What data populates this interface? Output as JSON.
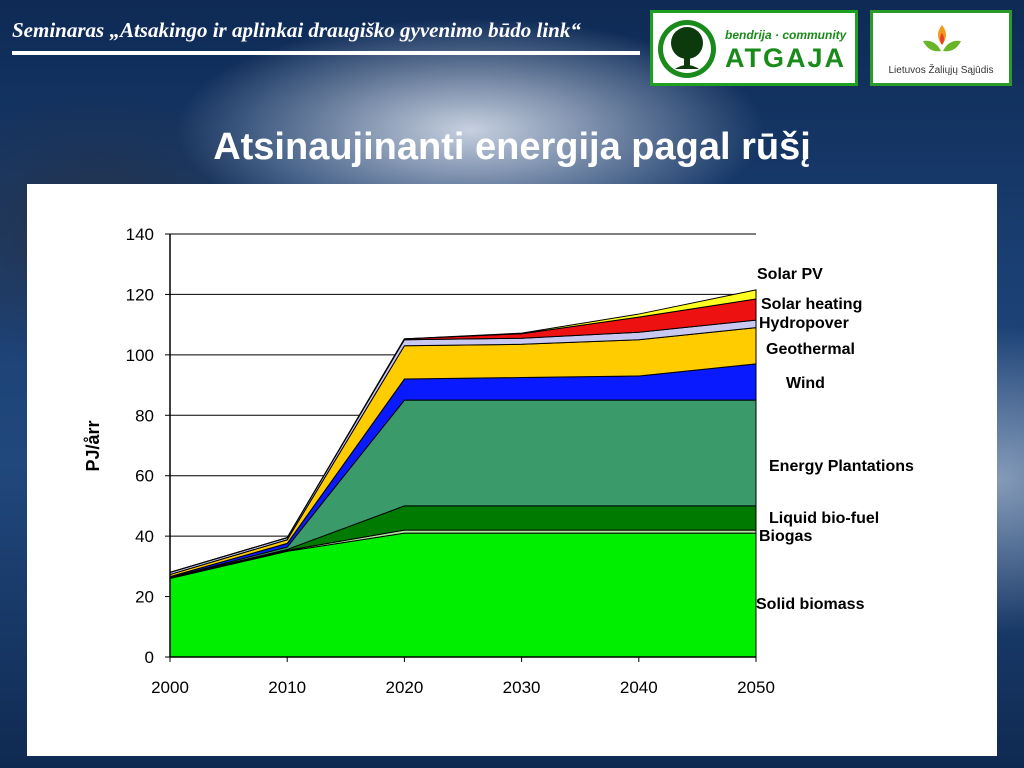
{
  "header": {
    "seminar_title": "Seminaras „Atsakingo ir aplinkai draugiško gyvenimo būdo link“",
    "logo_atgaja": {
      "sub": "bendrija · community",
      "name": "ATGAJA",
      "icon": "tree-icon"
    },
    "logo_lzs": {
      "name": "Lietuvos Žaliųjų Sąjūdis",
      "icon": "flame-leaf-icon"
    }
  },
  "slide": {
    "title": "Atsinaujinanti energija pagal rūšį"
  },
  "chart_data": {
    "type": "area",
    "stacked": true,
    "x": [
      2000,
      2010,
      2020,
      2030,
      2040,
      2050
    ],
    "xlim": [
      2000,
      2050
    ],
    "ylim": [
      0,
      140
    ],
    "yticks": [
      0,
      20,
      40,
      60,
      80,
      100,
      120,
      140
    ],
    "ylabel": "PJ/årr",
    "xlabel": "",
    "grid": true,
    "series": [
      {
        "name": "Solid biomass",
        "color": "#00ee00",
        "values": [
          26,
          35,
          41,
          41,
          41,
          41
        ]
      },
      {
        "name": "Biogas",
        "color": "#b0e8a0",
        "values": [
          0.3,
          0.3,
          1,
          1,
          1,
          1
        ]
      },
      {
        "name": "Liquid bio-fuel",
        "color": "#007a00",
        "values": [
          0,
          0.3,
          8,
          8,
          8,
          8
        ]
      },
      {
        "name": "Energy Plantations",
        "color": "#3a9a6a",
        "values": [
          0,
          0.8,
          35,
          35,
          35,
          35
        ]
      },
      {
        "name": "Wind",
        "color": "#0a1aff",
        "values": [
          0.3,
          1.2,
          7,
          7.5,
          8,
          12
        ]
      },
      {
        "name": "Geothermal",
        "color": "#ffcc00",
        "values": [
          0.7,
          1.2,
          11,
          11,
          12,
          12
        ]
      },
      {
        "name": "Hydropover",
        "color": "#c8c8f0",
        "values": [
          0.7,
          0.7,
          2,
          2,
          2.5,
          2.5
        ]
      },
      {
        "name": "Solar heating",
        "color": "#ee1111",
        "values": [
          0,
          0,
          0.3,
          1.5,
          5,
          7
        ]
      },
      {
        "name": "Solar PV",
        "color": "#ffff22",
        "values": [
          0,
          0,
          0,
          0.2,
          1,
          3
        ]
      }
    ]
  }
}
